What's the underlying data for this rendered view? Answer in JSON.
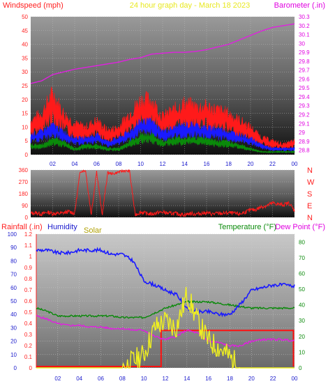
{
  "header": {
    "left_title": "Windspeed (mph)",
    "center_title": "24 hour graph day - March 18 2023",
    "right_title": "Barometer (.in)"
  },
  "colors": {
    "wind_gust": "#ff1a1a",
    "wind_avg": "#1a1aff",
    "wind_min": "#0a8a0a",
    "barometer": "#e020e0",
    "direction": "#ff1a1a",
    "rain": "#ff1010",
    "humidity": "#1a1aff",
    "solar": "#f0f020",
    "temperature": "#0a8a0a",
    "dewpoint": "#e020e0",
    "axis_left": "#ff2020",
    "axis_right": "#e000e0",
    "axis_blue": "#1a1acc",
    "axis_green": "#0a8a0a"
  },
  "chart_data": [
    {
      "type": "line",
      "id": "wind_barometer",
      "title": "24 hour graph day - March 18 2023",
      "ylabel": "Windspeed (mph)",
      "y2label": "Barometer (.in)",
      "ylim": [
        0,
        50
      ],
      "yticks": [
        0,
        5,
        10,
        15,
        20,
        25,
        30,
        35,
        40,
        45,
        50
      ],
      "y2lim": [
        28.75,
        30.3
      ],
      "y2ticks": [
        "28.8",
        "28.9",
        "29",
        "29.1",
        "29.2",
        "29.3",
        "29.4",
        "29.5",
        "29.6",
        "29.7",
        "29.8",
        "29.9",
        "30",
        "30.1",
        "30.2",
        "30.3"
      ],
      "xlim": [
        0,
        24
      ],
      "xticks": [
        "02",
        "04",
        "06",
        "08",
        "10",
        "12",
        "14",
        "16",
        "18",
        "20",
        "22",
        "00"
      ],
      "x": [
        0,
        1,
        2,
        3,
        4,
        5,
        6,
        7,
        8,
        9,
        10,
        11,
        12,
        13,
        14,
        15,
        16,
        17,
        18,
        19,
        20,
        21,
        22,
        23,
        24
      ],
      "series": [
        {
          "axis": "left",
          "role": "gust",
          "values": [
            10,
            12,
            18,
            12,
            9,
            8,
            10,
            7,
            8,
            12,
            16,
            16,
            11,
            13,
            15,
            14,
            14,
            13,
            12,
            10,
            8,
            5,
            4,
            3,
            4
          ]
        },
        {
          "axis": "left",
          "role": "average",
          "values": [
            6,
            7,
            9,
            7,
            5,
            5,
            6,
            4,
            5,
            7,
            10,
            10,
            7,
            8,
            9,
            9,
            8,
            8,
            7,
            6,
            5,
            3,
            2,
            2,
            2
          ]
        },
        {
          "axis": "left",
          "role": "minimum",
          "values": [
            3,
            3,
            5,
            4,
            2,
            3,
            3,
            2,
            2,
            4,
            6,
            6,
            4,
            5,
            5,
            5,
            5,
            4,
            4,
            3,
            2,
            1,
            1,
            1,
            1
          ]
        },
        {
          "axis": "right",
          "role": "barometer",
          "values": [
            29.55,
            29.58,
            29.65,
            29.68,
            29.71,
            29.73,
            29.75,
            29.77,
            29.79,
            29.82,
            29.84,
            29.88,
            29.89,
            29.9,
            29.9,
            29.91,
            29.93,
            29.96,
            29.99,
            30.04,
            30.09,
            30.14,
            30.18,
            30.2,
            30.22
          ]
        }
      ]
    },
    {
      "type": "line",
      "id": "wind_direction",
      "ylim": [
        0,
        360
      ],
      "yticks": [
        0,
        90,
        180,
        270,
        360
      ],
      "y2ticks": [
        "N",
        "E",
        "S",
        "W",
        "N"
      ],
      "xlim": [
        0,
        24
      ],
      "x": [
        0,
        0.5,
        1,
        1.5,
        2,
        2.5,
        3,
        3.5,
        4,
        4.5,
        5,
        5.5,
        6,
        6.5,
        7,
        7.5,
        8,
        8.5,
        9,
        9.5,
        10,
        10.5,
        11,
        11.5,
        12,
        12.5,
        13,
        13.5,
        14,
        14.5,
        15,
        15.5,
        16,
        16.5,
        17,
        17.5,
        18,
        18.5,
        19,
        19.5,
        20,
        20.5,
        21,
        21.5,
        22,
        22.5,
        23,
        23.5,
        24
      ],
      "values": [
        30,
        35,
        25,
        40,
        30,
        28,
        35,
        45,
        30,
        350,
        355,
        20,
        350,
        15,
        340,
        330,
        345,
        355,
        350,
        20,
        40,
        30,
        25,
        35,
        40,
        30,
        30,
        25,
        20,
        30,
        25,
        30,
        35,
        25,
        30,
        30,
        35,
        30,
        25,
        40,
        55,
        60,
        80,
        90,
        110,
        100,
        95,
        110,
        50
      ]
    },
    {
      "type": "line",
      "id": "rain_humidity_solar_temperature",
      "ylabel": "Rainfall (.in)",
      "ylim": [
        0,
        100
      ],
      "yticks": [
        0,
        10,
        20,
        30,
        40,
        50,
        60,
        70,
        80,
        90,
        100
      ],
      "yticks_rain": [
        "0",
        "0.1",
        "0.2",
        "0.3",
        "0.4",
        "0.5",
        "0.6",
        "0.7",
        "0.8",
        "0.9",
        "1",
        "1.1",
        "1.2"
      ],
      "y2label_temperature": "Temperature (°F)",
      "y2label_dewpoint": "Dew Point (°F)",
      "y2lim": [
        0,
        85
      ],
      "y2ticks": [
        0,
        10,
        20,
        30,
        40,
        50,
        60,
        70,
        80
      ],
      "legend": {
        "humidity": "Humidity",
        "solar": "Solar"
      },
      "xlim": [
        0,
        24
      ],
      "xticks": [
        "02",
        "04",
        "06",
        "08",
        "10",
        "12",
        "14",
        "16",
        "18",
        "20",
        "22",
        "00"
      ],
      "x": [
        0,
        1,
        2,
        3,
        4,
        5,
        6,
        7,
        8,
        9,
        10,
        11,
        12,
        13,
        14,
        15,
        16,
        17,
        18,
        19,
        20,
        21,
        22,
        23,
        24
      ],
      "series": [
        {
          "axis": "left",
          "role": "humidity",
          "values": [
            88,
            88,
            86,
            86,
            88,
            88,
            88,
            85,
            85,
            80,
            65,
            62,
            58,
            55,
            45,
            42,
            42,
            40,
            40,
            48,
            58,
            60,
            62,
            62,
            61
          ]
        },
        {
          "axis": "left",
          "role": "solar",
          "values": [
            0,
            0,
            0,
            0,
            0,
            0,
            0,
            0,
            0,
            5,
            10,
            30,
            35,
            30,
            55,
            35,
            20,
            15,
            8,
            0,
            0,
            0,
            0,
            0,
            0
          ]
        },
        {
          "axis": "right",
          "role": "temperature",
          "values": [
            38,
            36,
            33,
            33,
            33,
            33,
            33,
            33,
            32,
            32,
            32,
            35,
            38,
            40,
            42,
            42,
            42,
            41,
            40,
            39,
            38,
            38,
            38,
            38,
            38
          ]
        },
        {
          "axis": "right",
          "role": "dewpoint",
          "values": [
            33,
            31,
            28,
            27,
            27,
            26,
            26,
            25,
            25,
            24,
            24,
            20,
            18,
            20,
            24,
            22,
            17,
            16,
            14,
            14,
            17,
            18,
            18,
            18,
            17
          ]
        },
        {
          "axis": "left",
          "role": "rain",
          "values": [
            0,
            0,
            0,
            0,
            0,
            0,
            0,
            0,
            0,
            0,
            0,
            0,
            28,
            28,
            28,
            28,
            28,
            28,
            28,
            28,
            28,
            28,
            28,
            28,
            0
          ]
        }
      ]
    }
  ]
}
